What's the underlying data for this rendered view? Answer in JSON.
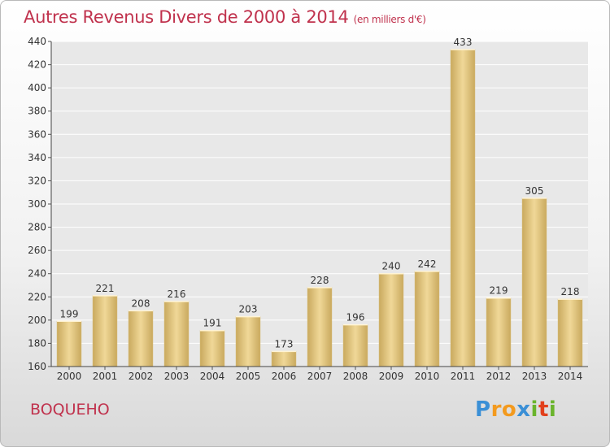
{
  "title": "Autres Revenus Divers de 2000 à 2014",
  "unit": "(en milliers d'€)",
  "commune": "BOQUEHO",
  "logo": {
    "letters": [
      "P",
      "r",
      "o",
      "x",
      "i",
      "t",
      "i"
    ],
    "colors": [
      "#3a8fd6",
      "#f39a1e",
      "#f39a1e",
      "#3a8fd6",
      "#6ab42c",
      "#e2401c",
      "#6ab42c"
    ]
  },
  "chart_data": {
    "type": "bar",
    "categories": [
      "2000",
      "2001",
      "2002",
      "2003",
      "2004",
      "2005",
      "2006",
      "2007",
      "2008",
      "2009",
      "2010",
      "2011",
      "2012",
      "2013",
      "2014"
    ],
    "values": [
      199,
      221,
      208,
      216,
      191,
      203,
      173,
      228,
      196,
      240,
      242,
      433,
      219,
      305,
      218
    ],
    "ylim": [
      160,
      440
    ],
    "yticks": [
      160,
      180,
      200,
      220,
      240,
      260,
      280,
      300,
      320,
      340,
      360,
      380,
      400,
      420,
      440
    ],
    "grid": true,
    "bar_color": "#e2c57c"
  }
}
